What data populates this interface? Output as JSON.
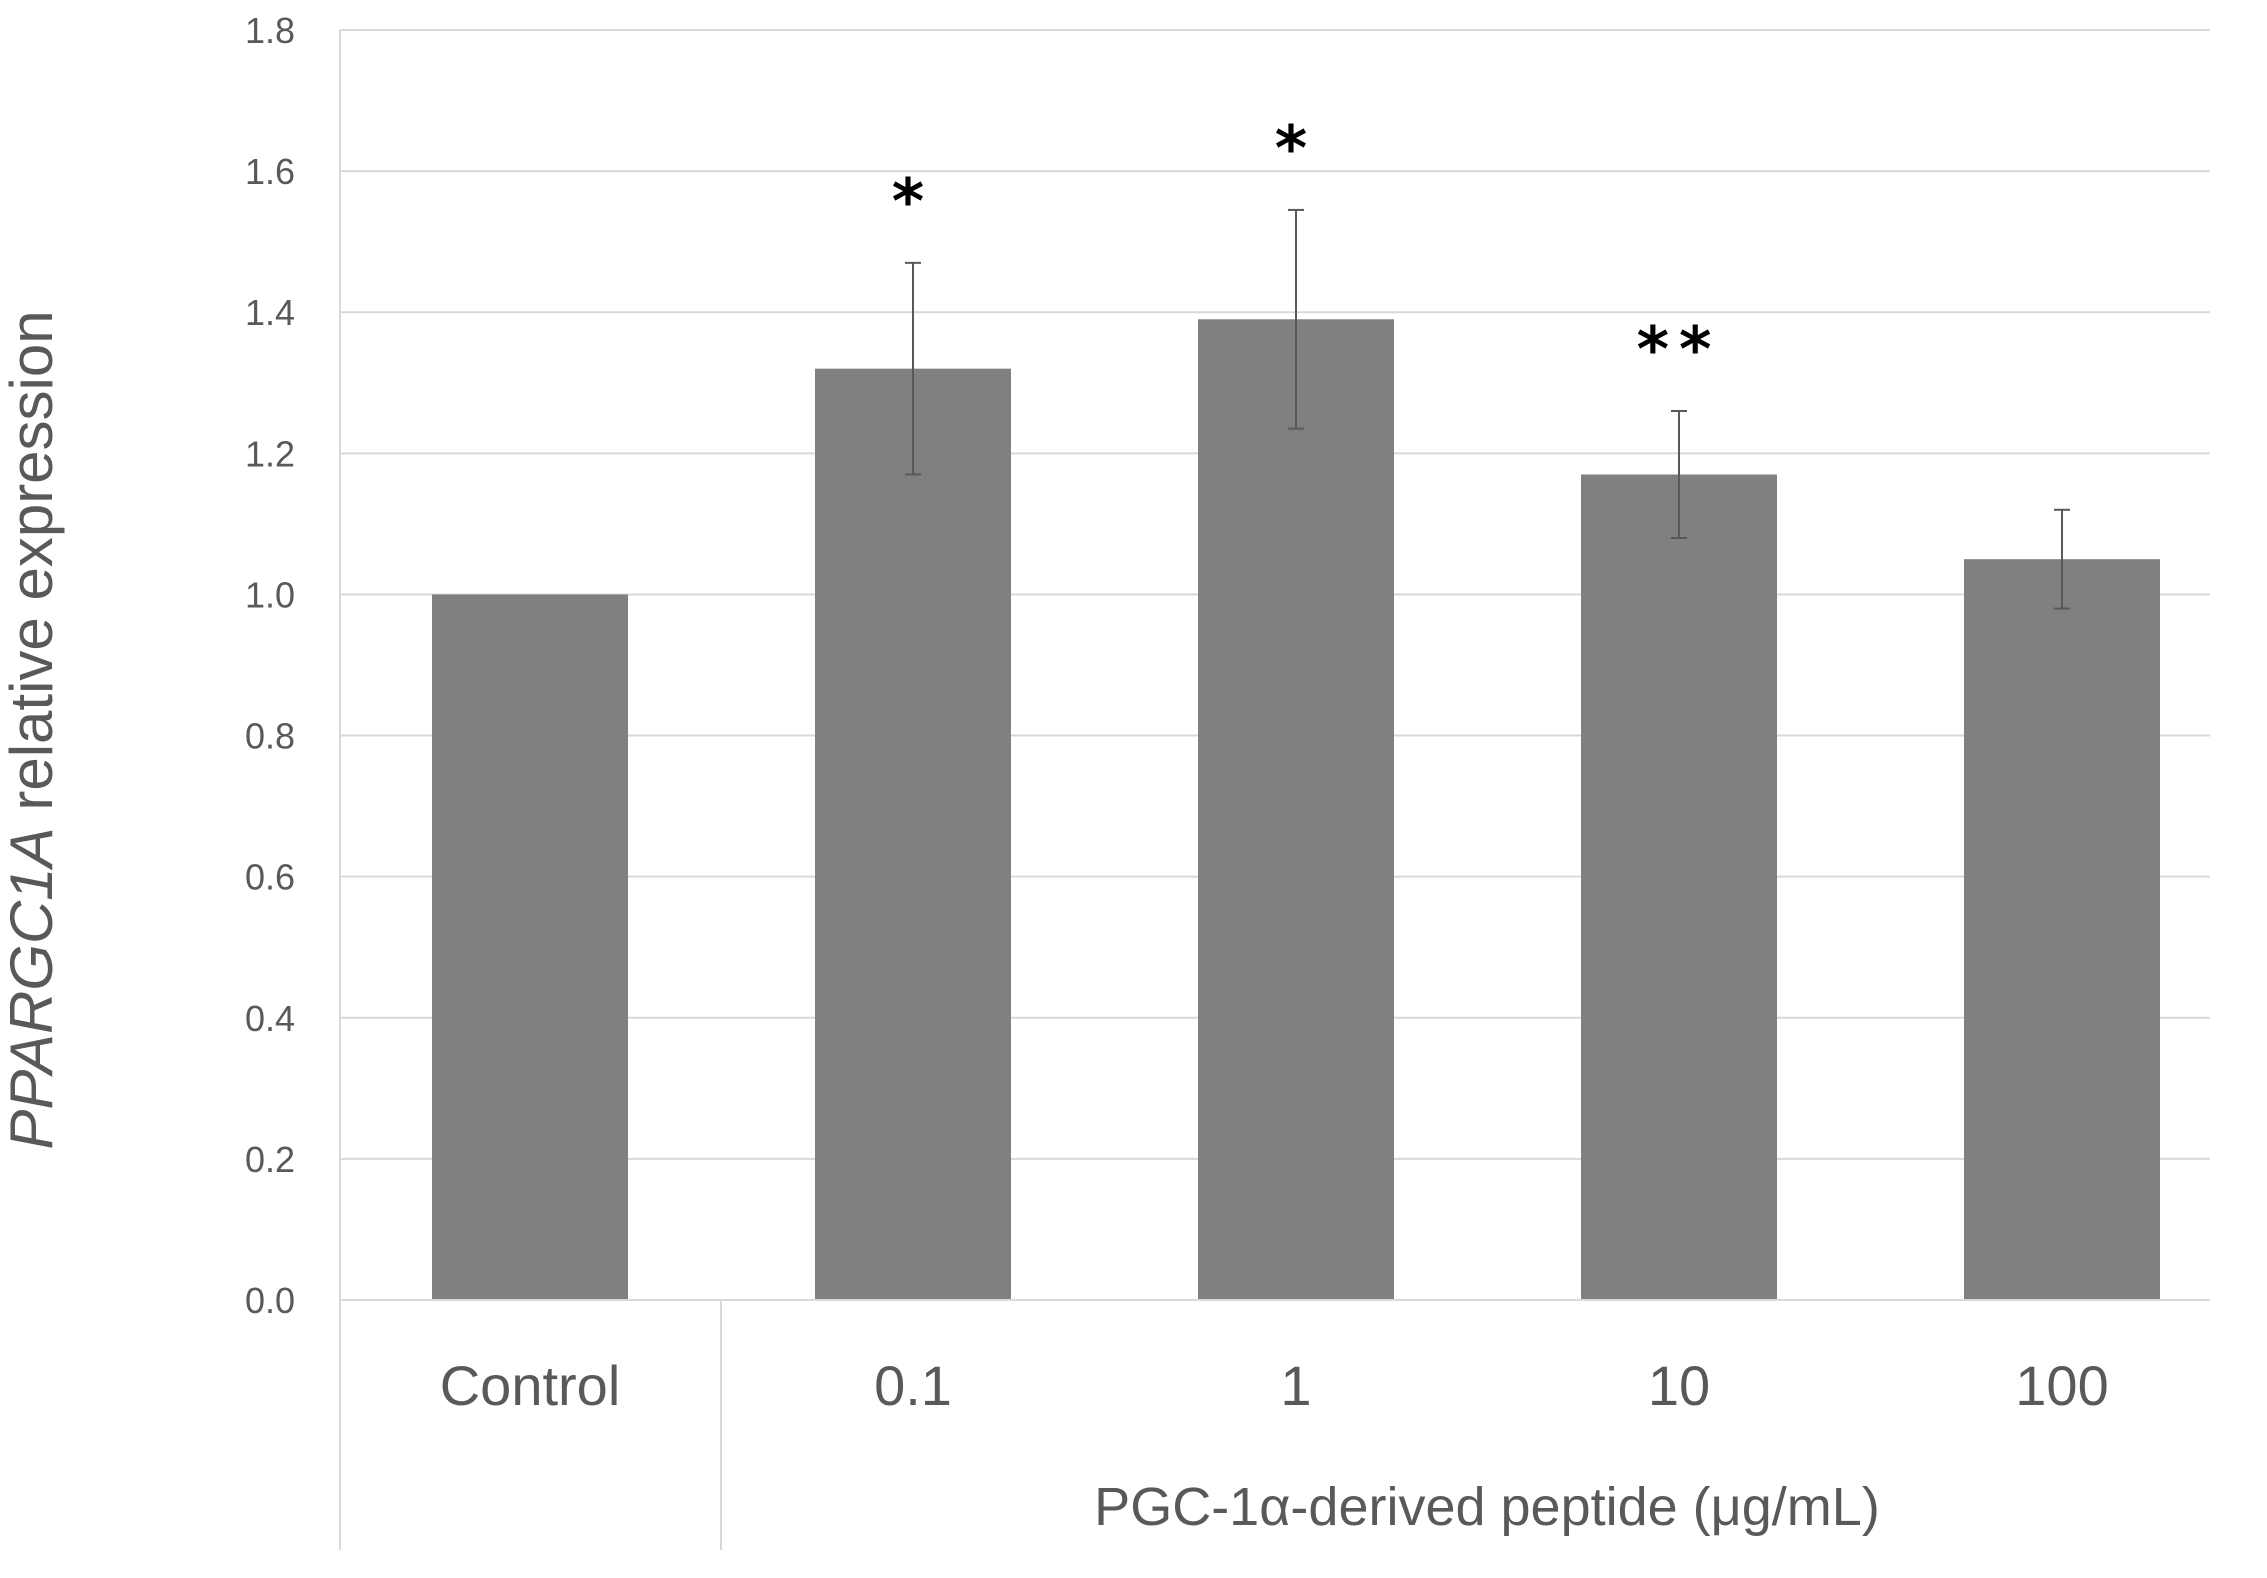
{
  "chart_data": {
    "type": "bar",
    "title": "",
    "ylabel": {
      "italic": "PPARGC1A",
      "rest": " relative expression"
    },
    "xlabel": "PGC-1α-derived peptide (μg/mL)",
    "ylim": [
      0,
      1.8
    ],
    "yticks": [
      "0.0",
      "0.2",
      "0.4",
      "0.6",
      "0.8",
      "1.0",
      "1.2",
      "1.4",
      "1.6",
      "1.8"
    ],
    "ytick_values": [
      0,
      0.2,
      0.4,
      0.6,
      0.8,
      1.0,
      1.2,
      1.4,
      1.6,
      1.8
    ],
    "categories": [
      "Control",
      "0.1",
      "1",
      "10",
      "100"
    ],
    "values": [
      1.0,
      1.32,
      1.39,
      1.17,
      1.05
    ],
    "errors": [
      0.0,
      0.15,
      0.155,
      0.09,
      0.07
    ],
    "significance": [
      "",
      "*",
      "*",
      "**",
      ""
    ],
    "grid": true,
    "colors": {
      "bar": "#808080",
      "grid": "#d9d9d9",
      "error": "#595959",
      "text": "#595959"
    }
  }
}
